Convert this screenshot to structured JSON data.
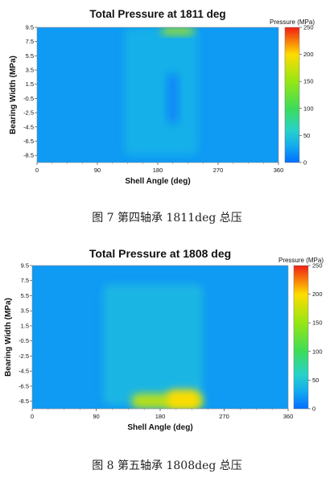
{
  "chart_data": [
    {
      "type": "heatmap",
      "title": "Total Pressure at 1811 deg",
      "xlabel": "Shell Angle (deg)",
      "ylabel": "Bearing Width (MPa)",
      "xlim": [
        0,
        360
      ],
      "ylim": [
        -9.5,
        9.5
      ],
      "x_ticks": [
        "0",
        "90",
        "180",
        "270",
        "360"
      ],
      "y_ticks": [
        "9.5",
        "7.5",
        "5.5",
        "3.5",
        "1.5",
        "-0.5",
        "-2.5",
        "-4.5",
        "-6.5",
        "-8.5"
      ],
      "colorbar_title": "Pressure (MPa)",
      "colorbar_ticks": [
        "250",
        "200",
        "150",
        "100",
        "50",
        "0"
      ],
      "colorbar_range": [
        0,
        250
      ],
      "features": [
        {
          "x": [
            130,
            240
          ],
          "y": [
            -8.5,
            9.5
          ],
          "value": 35
        },
        {
          "x": [
            185,
            235
          ],
          "y": [
            8.5,
            9.5
          ],
          "value": 160
        },
        {
          "x": [
            195,
            210
          ],
          "y": [
            -4,
            3
          ],
          "value": 10
        }
      ],
      "caption": "图 7  第四轴承 1811deg 总压"
    },
    {
      "type": "heatmap",
      "title": "Total Pressure at 1808 deg",
      "xlabel": "Shell Angle (deg)",
      "ylabel": "Bearing Width (MPa)",
      "xlim": [
        0,
        360
      ],
      "ylim": [
        -9.5,
        9.5
      ],
      "x_ticks": [
        "0",
        "90",
        "180",
        "270",
        "360"
      ],
      "y_ticks": [
        "9.5",
        "7.5",
        "5.5",
        "3.5",
        "1.5",
        "-0.5",
        "-2.5",
        "-4.5",
        "-6.5",
        "-8.5"
      ],
      "colorbar_title": "Pressure (MPa)",
      "colorbar_ticks": [
        "250",
        "200",
        "150",
        "100",
        "50",
        "0"
      ],
      "colorbar_range": [
        0,
        250
      ],
      "features": [
        {
          "x": [
            100,
            240
          ],
          "y": [
            -9,
            7
          ],
          "value": 40
        },
        {
          "x": [
            140,
            240
          ],
          "y": [
            -9.5,
            -7.5
          ],
          "value": 170
        },
        {
          "x": [
            190,
            235
          ],
          "y": [
            -9.5,
            -7
          ],
          "value": 200
        }
      ],
      "caption": "图 8  第五轴承 1808deg 总压"
    }
  ]
}
